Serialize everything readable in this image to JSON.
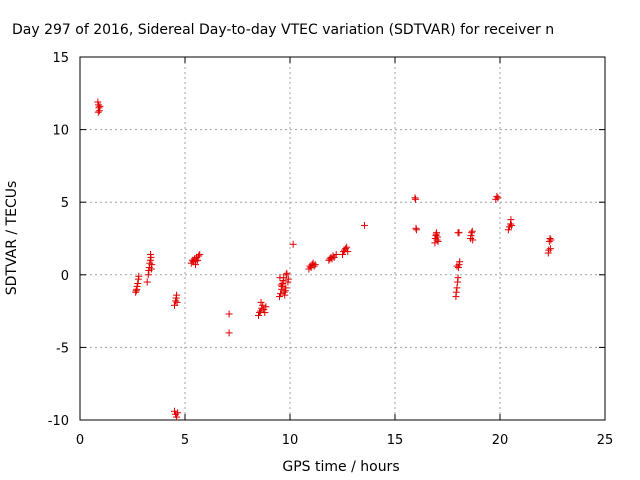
{
  "chart_data": {
    "type": "scatter",
    "title": "Day 297 of 2016, Sidereal Day-to-day VTEC variation (SDTVAR) for receiver n",
    "xlabel": "GPS time / hours",
    "ylabel": "SDTVAR / TECUs",
    "xlim": [
      0,
      25
    ],
    "ylim": [
      -10,
      15
    ],
    "xticks": [
      0,
      5,
      10,
      15,
      20,
      25
    ],
    "yticks": [
      -10,
      -5,
      0,
      5,
      10,
      15
    ],
    "grid": true,
    "marker": "+",
    "marker_color": "#e00000",
    "points": [
      [
        0.85,
        11.9
      ],
      [
        0.88,
        11.7
      ],
      [
        0.9,
        11.5
      ],
      [
        0.92,
        11.3
      ],
      [
        0.87,
        11.2
      ],
      [
        0.95,
        11.6
      ],
      [
        2.65,
        -1.2
      ],
      [
        2.7,
        -1.0
      ],
      [
        2.72,
        -0.8
      ],
      [
        2.75,
        -0.6
      ],
      [
        2.78,
        -0.3
      ],
      [
        2.8,
        -0.1
      ],
      [
        2.68,
        -1.1
      ],
      [
        3.2,
        -0.5
      ],
      [
        3.25,
        0.0
      ],
      [
        3.28,
        0.3
      ],
      [
        3.3,
        0.5
      ],
      [
        3.32,
        0.8
      ],
      [
        3.35,
        1.0
      ],
      [
        3.38,
        1.2
      ],
      [
        3.4,
        0.4
      ],
      [
        3.42,
        0.7
      ],
      [
        3.36,
        1.4
      ],
      [
        4.5,
        -2.1
      ],
      [
        4.55,
        -1.8
      ],
      [
        4.58,
        -1.6
      ],
      [
        4.6,
        -1.4
      ],
      [
        4.62,
        -1.9
      ],
      [
        4.5,
        -9.4
      ],
      [
        4.55,
        -9.6
      ],
      [
        4.6,
        -9.8
      ],
      [
        4.65,
        -9.5
      ],
      [
        5.3,
        0.8
      ],
      [
        5.35,
        1.0
      ],
      [
        5.4,
        0.9
      ],
      [
        5.45,
        1.1
      ],
      [
        5.5,
        0.7
      ],
      [
        5.55,
        1.2
      ],
      [
        5.6,
        1.0
      ],
      [
        5.65,
        1.3
      ],
      [
        5.7,
        1.4
      ],
      [
        5.52,
        0.95
      ],
      [
        7.1,
        -2.7
      ],
      [
        7.1,
        -4.0
      ],
      [
        8.5,
        -2.8
      ],
      [
        8.55,
        -2.6
      ],
      [
        8.6,
        -2.5
      ],
      [
        8.65,
        -2.3
      ],
      [
        8.7,
        -2.1
      ],
      [
        8.75,
        -2.4
      ],
      [
        8.8,
        -2.6
      ],
      [
        8.85,
        -2.2
      ],
      [
        8.62,
        -1.9
      ],
      [
        9.5,
        -1.5
      ],
      [
        9.55,
        -1.3
      ],
      [
        9.6,
        -1.0
      ],
      [
        9.62,
        -0.8
      ],
      [
        9.65,
        -0.6
      ],
      [
        9.68,
        -0.4
      ],
      [
        9.7,
        -0.2
      ],
      [
        9.72,
        -1.2
      ],
      [
        9.75,
        -1.4
      ],
      [
        9.78,
        -1.1
      ],
      [
        9.8,
        -0.9
      ],
      [
        9.82,
        0.0
      ],
      [
        9.85,
        0.1
      ],
      [
        9.9,
        -0.5
      ],
      [
        9.92,
        -0.3
      ],
      [
        9.58,
        -0.7
      ],
      [
        9.52,
        -0.2
      ],
      [
        10.15,
        2.1
      ],
      [
        10.9,
        0.4
      ],
      [
        10.95,
        0.6
      ],
      [
        11.0,
        0.5
      ],
      [
        11.05,
        0.7
      ],
      [
        11.1,
        0.8
      ],
      [
        11.15,
        0.6
      ],
      [
        11.2,
        0.7
      ],
      [
        11.85,
        1.0
      ],
      [
        11.9,
        1.1
      ],
      [
        11.95,
        1.2
      ],
      [
        12.0,
        1.1
      ],
      [
        12.05,
        1.3
      ],
      [
        12.1,
        1.2
      ],
      [
        12.2,
        1.4
      ],
      [
        12.5,
        1.4
      ],
      [
        12.55,
        1.6
      ],
      [
        12.6,
        1.7
      ],
      [
        12.65,
        1.8
      ],
      [
        12.7,
        1.9
      ],
      [
        12.75,
        1.6
      ],
      [
        13.55,
        3.4
      ],
      [
        15.95,
        5.3
      ],
      [
        15.98,
        5.2
      ],
      [
        16.0,
        3.2
      ],
      [
        16.02,
        3.1
      ],
      [
        16.9,
        2.2
      ],
      [
        16.92,
        2.5
      ],
      [
        16.95,
        2.7
      ],
      [
        16.98,
        2.9
      ],
      [
        17.0,
        2.4
      ],
      [
        17.02,
        2.6
      ],
      [
        17.05,
        2.3
      ],
      [
        16.96,
        2.8
      ],
      [
        17.9,
        -1.5
      ],
      [
        17.92,
        -1.2
      ],
      [
        17.95,
        -0.9
      ],
      [
        17.98,
        -0.5
      ],
      [
        18.0,
        -0.2
      ],
      [
        18.02,
        0.5
      ],
      [
        18.05,
        0.7
      ],
      [
        18.08,
        0.9
      ],
      [
        18.0,
        2.9
      ],
      [
        18.05,
        2.9
      ],
      [
        17.95,
        0.6
      ],
      [
        18.6,
        2.5
      ],
      [
        18.62,
        2.7
      ],
      [
        18.65,
        2.9
      ],
      [
        18.68,
        3.0
      ],
      [
        18.7,
        2.4
      ],
      [
        19.8,
        5.2
      ],
      [
        19.85,
        5.4
      ],
      [
        19.9,
        5.3
      ],
      [
        20.4,
        3.1
      ],
      [
        20.45,
        3.3
      ],
      [
        20.5,
        3.5
      ],
      [
        20.52,
        3.8
      ],
      [
        20.55,
        3.4
      ],
      [
        22.3,
        1.5
      ],
      [
        22.32,
        1.7
      ],
      [
        22.35,
        2.3
      ],
      [
        22.38,
        2.5
      ],
      [
        22.4,
        1.8
      ],
      [
        22.42,
        2.4
      ]
    ]
  }
}
